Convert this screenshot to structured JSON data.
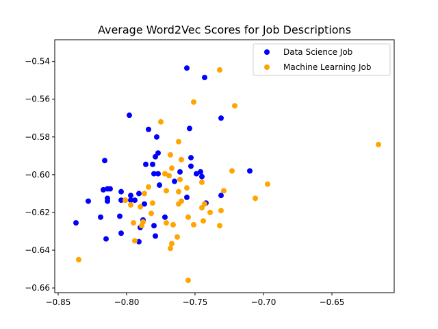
{
  "chart_data": {
    "type": "scatter",
    "title": "Average Word2Vec Scores for Job Descriptions",
    "xlabel": "",
    "ylabel": "",
    "xlim": [
      -0.8525,
      -0.6045
    ],
    "ylim": [
      -0.6625,
      -0.5285
    ],
    "xticks": [
      -0.85,
      -0.8,
      -0.75,
      -0.7,
      -0.65
    ],
    "xtick_labels": [
      "−0.85",
      "−0.80",
      "−0.75",
      "−0.70",
      "−0.65"
    ],
    "yticks": [
      -0.66,
      -0.64,
      -0.62,
      -0.6,
      -0.58,
      -0.56,
      -0.54
    ],
    "ytick_labels": [
      "−0.66",
      "−0.64",
      "−0.62",
      "−0.60",
      "−0.58",
      "−0.56",
      "−0.54"
    ],
    "grid": false,
    "legend_position": "top-right",
    "series": [
      {
        "name": "Data Science Job",
        "color": "#0000ff",
        "points": [
          [
            -0.756,
            -0.5435
          ],
          [
            -0.743,
            -0.5485
          ],
          [
            -0.731,
            -0.57
          ],
          [
            -0.798,
            -0.5685
          ],
          [
            -0.784,
            -0.576
          ],
          [
            -0.754,
            -0.5755
          ],
          [
            -0.778,
            -0.58
          ],
          [
            -0.777,
            -0.5885
          ],
          [
            -0.779,
            -0.5905
          ],
          [
            -0.786,
            -0.5945
          ],
          [
            -0.781,
            -0.5945
          ],
          [
            -0.816,
            -0.5925
          ],
          [
            -0.753,
            -0.591
          ],
          [
            -0.753,
            -0.5955
          ],
          [
            -0.761,
            -0.5985
          ],
          [
            -0.746,
            -0.5985
          ],
          [
            -0.777,
            -0.5995
          ],
          [
            -0.78,
            -0.5995
          ],
          [
            -0.749,
            -0.5995
          ],
          [
            -0.745,
            -0.601
          ],
          [
            -0.71,
            -0.598
          ],
          [
            -0.765,
            -0.6035
          ],
          [
            -0.776,
            -0.6055
          ],
          [
            -0.812,
            -0.6075
          ],
          [
            -0.817,
            -0.608
          ],
          [
            -0.814,
            -0.6075
          ],
          [
            -0.804,
            -0.609
          ],
          [
            -0.791,
            -0.61
          ],
          [
            -0.797,
            -0.611
          ],
          [
            -0.814,
            -0.6125
          ],
          [
            -0.797,
            -0.6135
          ],
          [
            -0.804,
            -0.6135
          ],
          [
            -0.801,
            -0.6135
          ],
          [
            -0.828,
            -0.614
          ],
          [
            -0.814,
            -0.614
          ],
          [
            -0.794,
            -0.6135
          ],
          [
            -0.756,
            -0.612
          ],
          [
            -0.731,
            -0.611
          ],
          [
            -0.787,
            -0.6155
          ],
          [
            -0.742,
            -0.615
          ],
          [
            -0.805,
            -0.622
          ],
          [
            -0.819,
            -0.6225
          ],
          [
            -0.772,
            -0.6225
          ],
          [
            -0.788,
            -0.624
          ],
          [
            -0.837,
            -0.6255
          ],
          [
            -0.78,
            -0.627
          ],
          [
            -0.79,
            -0.628
          ],
          [
            -0.804,
            -0.631
          ],
          [
            -0.815,
            -0.634
          ],
          [
            -0.779,
            -0.6325
          ],
          [
            -0.791,
            -0.6355
          ]
        ]
      },
      {
        "name": "Machine Learning Job",
        "color": "#ffa500",
        "points": [
          [
            -0.732,
            -0.5445
          ],
          [
            -0.751,
            -0.5615
          ],
          [
            -0.721,
            -0.5635
          ],
          [
            -0.775,
            -0.572
          ],
          [
            -0.616,
            -0.584
          ],
          [
            -0.762,
            -0.5825
          ],
          [
            -0.768,
            -0.5895
          ],
          [
            -0.76,
            -0.592
          ],
          [
            -0.767,
            -0.5965
          ],
          [
            -0.723,
            -0.598
          ],
          [
            -0.772,
            -0.5995
          ],
          [
            -0.769,
            -0.6005
          ],
          [
            -0.761,
            -0.6025
          ],
          [
            -0.745,
            -0.604
          ],
          [
            -0.697,
            -0.605
          ],
          [
            -0.784,
            -0.6065
          ],
          [
            -0.756,
            -0.607
          ],
          [
            -0.787,
            -0.61
          ],
          [
            -0.771,
            -0.6085
          ],
          [
            -0.762,
            -0.609
          ],
          [
            -0.729,
            -0.6085
          ],
          [
            -0.706,
            -0.6125
          ],
          [
            -0.76,
            -0.614
          ],
          [
            -0.801,
            -0.6135
          ],
          [
            -0.781,
            -0.615
          ],
          [
            -0.762,
            -0.6155
          ],
          [
            -0.743,
            -0.6155
          ],
          [
            -0.745,
            -0.6175
          ],
          [
            -0.79,
            -0.617
          ],
          [
            -0.797,
            -0.616
          ],
          [
            -0.731,
            -0.619
          ],
          [
            -0.739,
            -0.62
          ],
          [
            -0.782,
            -0.6205
          ],
          [
            -0.755,
            -0.6225
          ],
          [
            -0.788,
            -0.625
          ],
          [
            -0.744,
            -0.6245
          ],
          [
            -0.795,
            -0.6255
          ],
          [
            -0.771,
            -0.6255
          ],
          [
            -0.789,
            -0.627
          ],
          [
            -0.766,
            -0.6265
          ],
          [
            -0.751,
            -0.6265
          ],
          [
            -0.732,
            -0.627
          ],
          [
            -0.763,
            -0.633
          ],
          [
            -0.794,
            -0.635
          ],
          [
            -0.767,
            -0.6365
          ],
          [
            -0.768,
            -0.639
          ],
          [
            -0.835,
            -0.645
          ],
          [
            -0.755,
            -0.656
          ]
        ]
      }
    ]
  }
}
